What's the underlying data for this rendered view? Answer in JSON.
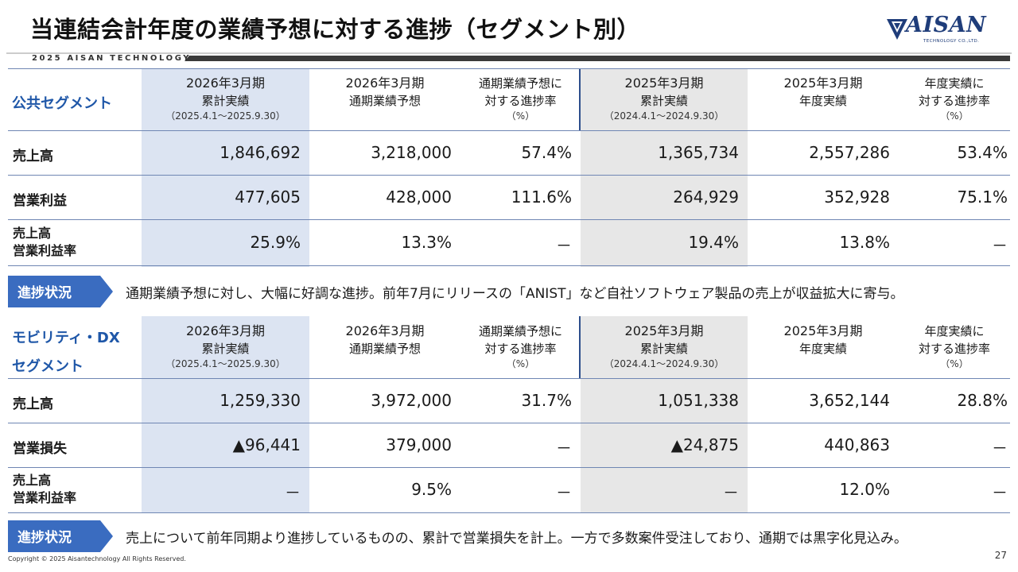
{
  "page": {
    "title": "当連結会計年度の業績予想に対する進捗（セグメント別）",
    "subbrand": "2025 AISAN TECHNOLOGY",
    "logo_text": "AISAN",
    "logo_sub": "TECHNOLOGY CO.,LTD.",
    "copyright": "Copyright © 2025 Aisantechnology All Rights Reserved.",
    "page_number": "27",
    "accent_color": "#1f57a8",
    "progress_tag_color": "#3a6cc0"
  },
  "columns": {
    "c1": {
      "line1": "2026年3月期",
      "line2": "累計実績",
      "line3": "（2025.4.1～2025.9.30）"
    },
    "c2": {
      "line1": "2026年3月期",
      "line2": "通期業績予想"
    },
    "c3": {
      "line1": "通期業績予想に",
      "line2": "対する進捗率",
      "line3": "（%）"
    },
    "c4": {
      "line1": "2025年3月期",
      "line2": "累計実績",
      "line3": "（2024.4.1～2024.9.30）"
    },
    "c5": {
      "line1": "2025年3月期",
      "line2": "年度実績"
    },
    "c6": {
      "line1": "年度実績に",
      "line2": "対する進捗率",
      "line3": "（%）"
    }
  },
  "public": {
    "segment": "公共セグメント",
    "rows": [
      {
        "label": "売上高",
        "values": [
          "1,846,692",
          "3,218,000",
          "57.4%",
          "1,365,734",
          "2,557,286",
          "53.4%"
        ]
      },
      {
        "label": "営業利益",
        "values": [
          "477,605",
          "428,000",
          "111.6%",
          "264,929",
          "352,928",
          "75.1%"
        ]
      },
      {
        "label_line1": "売上高",
        "label_line2": "営業利益率",
        "values": [
          "25.9%",
          "13.3%",
          "－",
          "19.4%",
          "13.8%",
          "－"
        ]
      }
    ],
    "progress_label": "進捗状況",
    "progress_text": "通期業績予想に対し、大幅に好調な進捗。前年7月にリリースの「ANIST」など自社ソフトウェア製品の売上が収益拡大に寄与。"
  },
  "mobility": {
    "segment_line1": "モビリティ・DX",
    "segment_line2": "セグメント",
    "rows": [
      {
        "label": "売上高",
        "values": [
          "1,259,330",
          "3,972,000",
          "31.7%",
          "1,051,338",
          "3,652,144",
          "28.8%"
        ]
      },
      {
        "label": "営業損失",
        "values": [
          "▲96,441",
          "379,000",
          "－",
          "▲24,875",
          "440,863",
          "－"
        ]
      },
      {
        "label_line1": "売上高",
        "label_line2": "営業利益率",
        "values": [
          "－",
          "9.5%",
          "－",
          "－",
          "12.0%",
          "－"
        ]
      }
    ],
    "progress_label": "進捗状況",
    "progress_text": "売上について前年同期より進捗しているものの、累計で営業損失を計上。一方で多数案件受注しており、通期では黒字化見込み。"
  }
}
